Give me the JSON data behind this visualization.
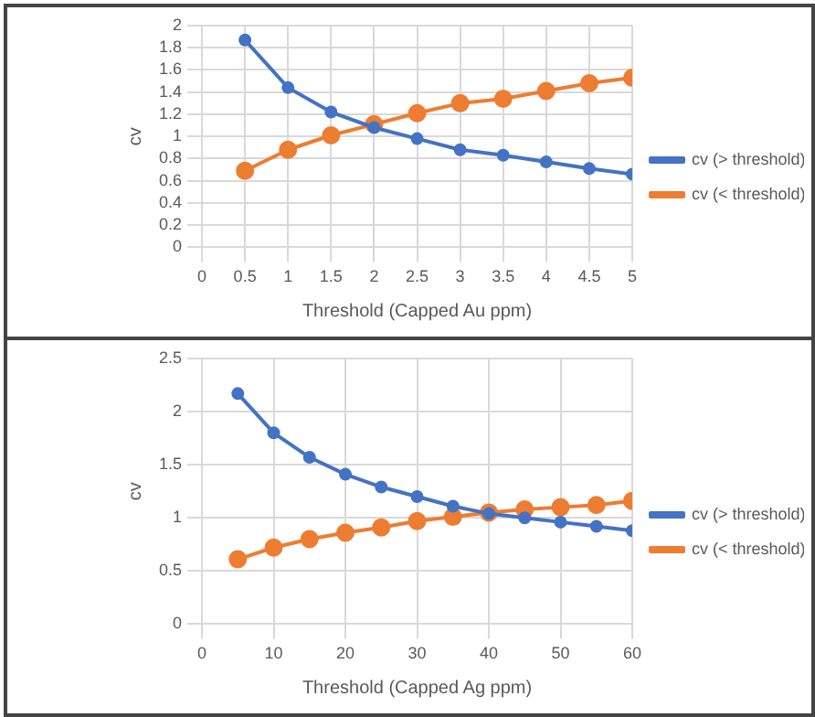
{
  "chart_data": [
    {
      "type": "line",
      "xlabel": "Threshold (Capped Au ppm)",
      "ylabel": "cv",
      "x": [
        0.5,
        1,
        1.5,
        2,
        2.5,
        3,
        3.5,
        4,
        4.5,
        5
      ],
      "series": [
        {
          "name": "cv (> threshold)",
          "color": "#4472c4",
          "values": [
            1.87,
            1.44,
            1.22,
            1.08,
            0.98,
            0.88,
            0.83,
            0.77,
            0.71,
            0.66
          ]
        },
        {
          "name": "cv (< threshold)",
          "color": "#ed7d31",
          "values": [
            0.69,
            0.88,
            1.01,
            1.11,
            1.21,
            1.3,
            1.34,
            1.41,
            1.48,
            1.53
          ]
        }
      ],
      "xlim": [
        0,
        5
      ],
      "xticks": [
        0,
        0.5,
        1,
        1.5,
        2,
        2.5,
        3,
        3.5,
        4,
        4.5,
        5
      ],
      "ylim": [
        0,
        2
      ],
      "yticks": [
        0,
        0.2,
        0.4,
        0.6,
        0.8,
        1,
        1.2,
        1.4,
        1.6,
        1.8,
        2
      ],
      "grid": true,
      "legend": "right",
      "marker": "circle",
      "line_style": "solid"
    },
    {
      "type": "line",
      "xlabel": "Threshold (Capped Ag ppm)",
      "ylabel": "cv",
      "x": [
        5,
        10,
        15,
        20,
        25,
        30,
        35,
        40,
        45,
        50,
        55,
        60
      ],
      "series": [
        {
          "name": "cv (> threshold)",
          "color": "#4472c4",
          "values": [
            2.17,
            1.8,
            1.57,
            1.41,
            1.29,
            1.2,
            1.11,
            1.04,
            1.0,
            0.96,
            0.92,
            0.88
          ]
        },
        {
          "name": "cv (< threshold)",
          "color": "#ed7d31",
          "values": [
            0.61,
            0.72,
            0.8,
            0.86,
            0.91,
            0.97,
            1.01,
            1.05,
            1.08,
            1.1,
            1.12,
            1.16
          ]
        }
      ],
      "xlim": [
        0,
        60
      ],
      "xticks": [
        0,
        10,
        20,
        30,
        40,
        50,
        60
      ],
      "ylim": [
        0,
        2.5
      ],
      "yticks": [
        0,
        0.5,
        1,
        1.5,
        2,
        2.5
      ],
      "grid": true,
      "legend": "right",
      "marker": "circle",
      "line_style": "solid"
    }
  ]
}
